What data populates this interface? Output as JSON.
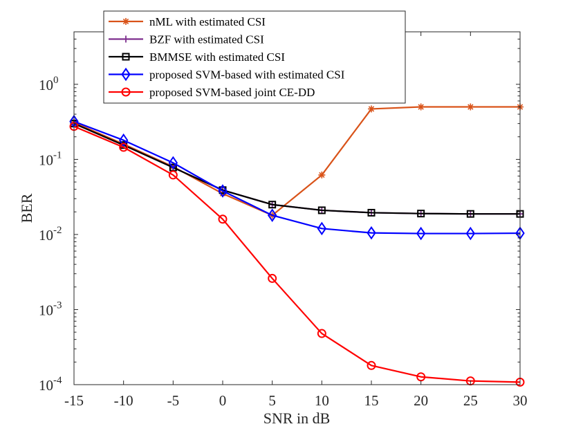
{
  "chart_data": {
    "type": "line",
    "title": "",
    "xlabel": "SNR in dB",
    "ylabel": "BER",
    "xscale": "linear",
    "yscale": "log",
    "xlim": [
      -15,
      30
    ],
    "ylim": [
      0.0001,
      5
    ],
    "grid": false,
    "legend_position": "top-left",
    "x": [
      -15,
      -10,
      -5,
      0,
      5,
      10,
      15,
      20,
      25,
      30
    ],
    "x_tick_labels": [
      "-15",
      "-10",
      "-5",
      "0",
      "5",
      "10",
      "15",
      "20",
      "25",
      "30"
    ],
    "y_ticks": [
      {
        "value": 1,
        "base": "10",
        "exp": "0"
      },
      {
        "value": 0.1,
        "base": "10",
        "exp": "-1"
      },
      {
        "value": 0.01,
        "base": "10",
        "exp": "-2"
      },
      {
        "value": 0.001,
        "base": "10",
        "exp": "-3"
      },
      {
        "value": 0.0001,
        "base": "10",
        "exp": "-4"
      }
    ],
    "series": [
      {
        "name": "nML with estimated CSI",
        "color": "#d95319",
        "marker": "asterisk",
        "values": [
          0.31,
          0.16,
          0.08,
          0.035,
          0.018,
          0.062,
          0.47,
          0.5,
          0.5,
          0.5
        ]
      },
      {
        "name": "BZF with estimated CSI",
        "color": "#7e2f8e",
        "marker": "plus",
        "values": [
          0.3,
          0.155,
          0.078,
          0.039,
          0.025,
          0.021,
          0.0195,
          0.019,
          0.0188,
          0.0188
        ]
      },
      {
        "name": "BMMSE with estimated CSI",
        "color": "#000000",
        "marker": "square",
        "values": [
          0.3,
          0.155,
          0.078,
          0.039,
          0.025,
          0.021,
          0.0195,
          0.019,
          0.0188,
          0.0188
        ]
      },
      {
        "name": "proposed SVM-based with estimated CSI",
        "color": "#0000ff",
        "marker": "diamond",
        "values": [
          0.32,
          0.18,
          0.09,
          0.038,
          0.018,
          0.012,
          0.0105,
          0.0103,
          0.0103,
          0.0104
        ]
      },
      {
        "name": "proposed SVM-based joint CE-DD",
        "color": "#ff0000",
        "marker": "circle",
        "values": [
          0.275,
          0.145,
          0.062,
          0.016,
          0.0026,
          0.00048,
          0.00018,
          0.000127,
          0.000112,
          0.000108
        ]
      }
    ]
  }
}
